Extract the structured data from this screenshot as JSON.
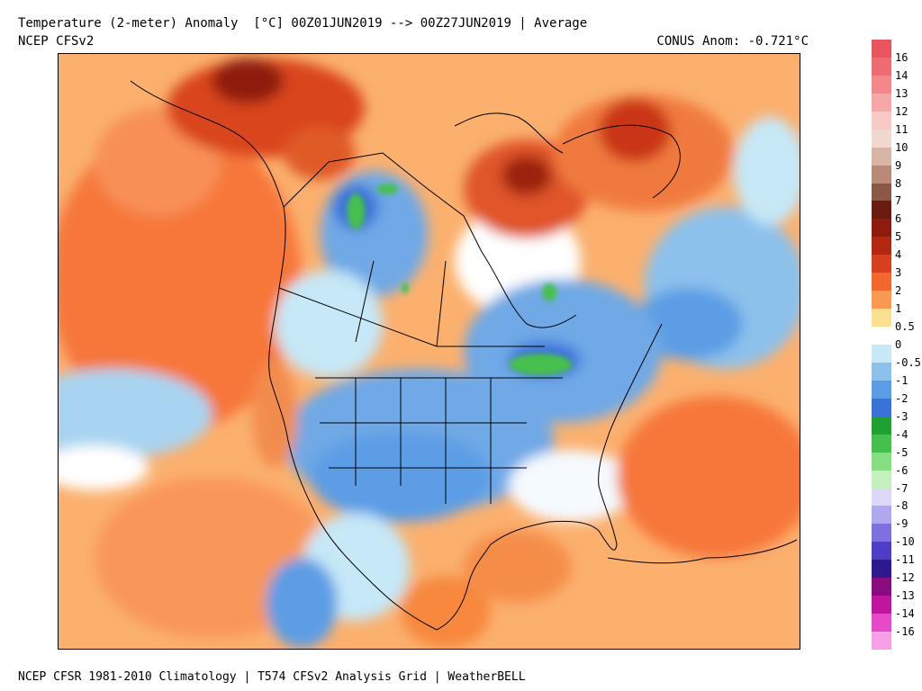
{
  "header": {
    "title": "Temperature (2-meter) Anomaly  [°C] 00Z01JUN2019 --> 00Z27JUN2019 | Average",
    "model": "NCEP CFSv2",
    "conus_anomaly": "CONUS Anom: -0.721°C"
  },
  "footer": {
    "text": "NCEP CFSR 1981-2010 Climatology | T574 CFSv2 Analysis Grid | WeatherBELL"
  },
  "legend": {
    "bins": [
      {
        "label": "16",
        "color": "#e8555c"
      },
      {
        "label": "14",
        "color": "#ee6b6f"
      },
      {
        "label": "13",
        "color": "#f28888"
      },
      {
        "label": "12",
        "color": "#f7a7a6"
      },
      {
        "label": "11",
        "color": "#fac9c5"
      },
      {
        "label": "10",
        "color": "#f0d8d0"
      },
      {
        "label": "9",
        "color": "#d6b4a6"
      },
      {
        "label": "8",
        "color": "#ba8a78"
      },
      {
        "label": "7",
        "color": "#8c5747"
      },
      {
        "label": "6",
        "color": "#6b1c0e"
      },
      {
        "label": "5",
        "color": "#8e1b0d"
      },
      {
        "label": "4",
        "color": "#b3260f"
      },
      {
        "label": "3",
        "color": "#d6401c"
      },
      {
        "label": "2",
        "color": "#f2682c"
      },
      {
        "label": "1",
        "color": "#fa9950"
      },
      {
        "label": "0.5",
        "color": "#fde08f"
      },
      {
        "label": "0",
        "color": "#ffffff"
      },
      {
        "label": "-0.5",
        "color": "#c6e8f7"
      },
      {
        "label": "-1",
        "color": "#8cc1ec"
      },
      {
        "label": "-2",
        "color": "#5b9de5"
      },
      {
        "label": "-3",
        "color": "#3a72d9"
      },
      {
        "label": "-4",
        "color": "#1fa131"
      },
      {
        "label": "-5",
        "color": "#46c04d"
      },
      {
        "label": "-6",
        "color": "#85de80"
      },
      {
        "label": "-7",
        "color": "#c4f0be"
      },
      {
        "label": "-8",
        "color": "#ddd8f5"
      },
      {
        "label": "-9",
        "color": "#b0a8ee"
      },
      {
        "label": "-10",
        "color": "#7f70e0"
      },
      {
        "label": "-11",
        "color": "#4e3ec5"
      },
      {
        "label": "-12",
        "color": "#2e1a8e"
      },
      {
        "label": "-13",
        "color": "#8a0c7e"
      },
      {
        "label": "-14",
        "color": "#c0159e"
      },
      {
        "label": "-16",
        "color": "#e64ac9"
      },
      {
        "label": "",
        "color": "#f7a0ea"
      }
    ]
  }
}
